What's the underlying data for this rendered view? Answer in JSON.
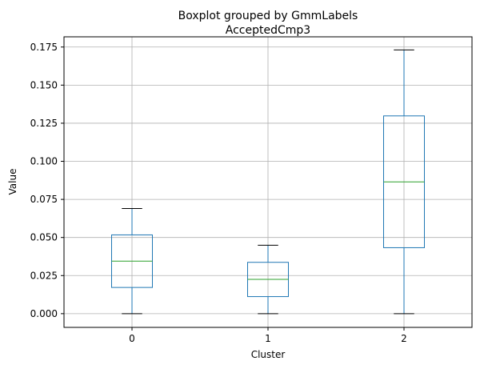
{
  "chart_data": {
    "type": "boxplot",
    "suptitle": "Boxplot grouped by GmmLabels",
    "title": "AcceptedCmp3",
    "xlabel": "Cluster",
    "ylabel": "Value",
    "categories": [
      "0",
      "1",
      "2"
    ],
    "ylim": [
      -0.009,
      0.1817
    ],
    "yticks": [
      0.0,
      0.025,
      0.05,
      0.075,
      0.1,
      0.125,
      0.15,
      0.175
    ],
    "ytick_labels": [
      "0.000",
      "0.025",
      "0.050",
      "0.075",
      "0.100",
      "0.125",
      "0.150",
      "0.175"
    ],
    "grid": true,
    "boxes": [
      {
        "whisker_low": 0.0,
        "q1": 0.0172,
        "median": 0.0345,
        "q3": 0.0517,
        "whisker_high": 0.069
      },
      {
        "whisker_low": 0.0,
        "q1": 0.0112,
        "median": 0.0225,
        "q3": 0.0337,
        "whisker_high": 0.0449
      },
      {
        "whisker_low": 0.0,
        "q1": 0.0433,
        "median": 0.0865,
        "q3": 0.1298,
        "whisker_high": 0.1731
      }
    ],
    "colors": {
      "box": "#1f77b4",
      "median": "#2ca02c",
      "whisker_cap": "#000000",
      "grid": "#b0b0b0"
    }
  }
}
